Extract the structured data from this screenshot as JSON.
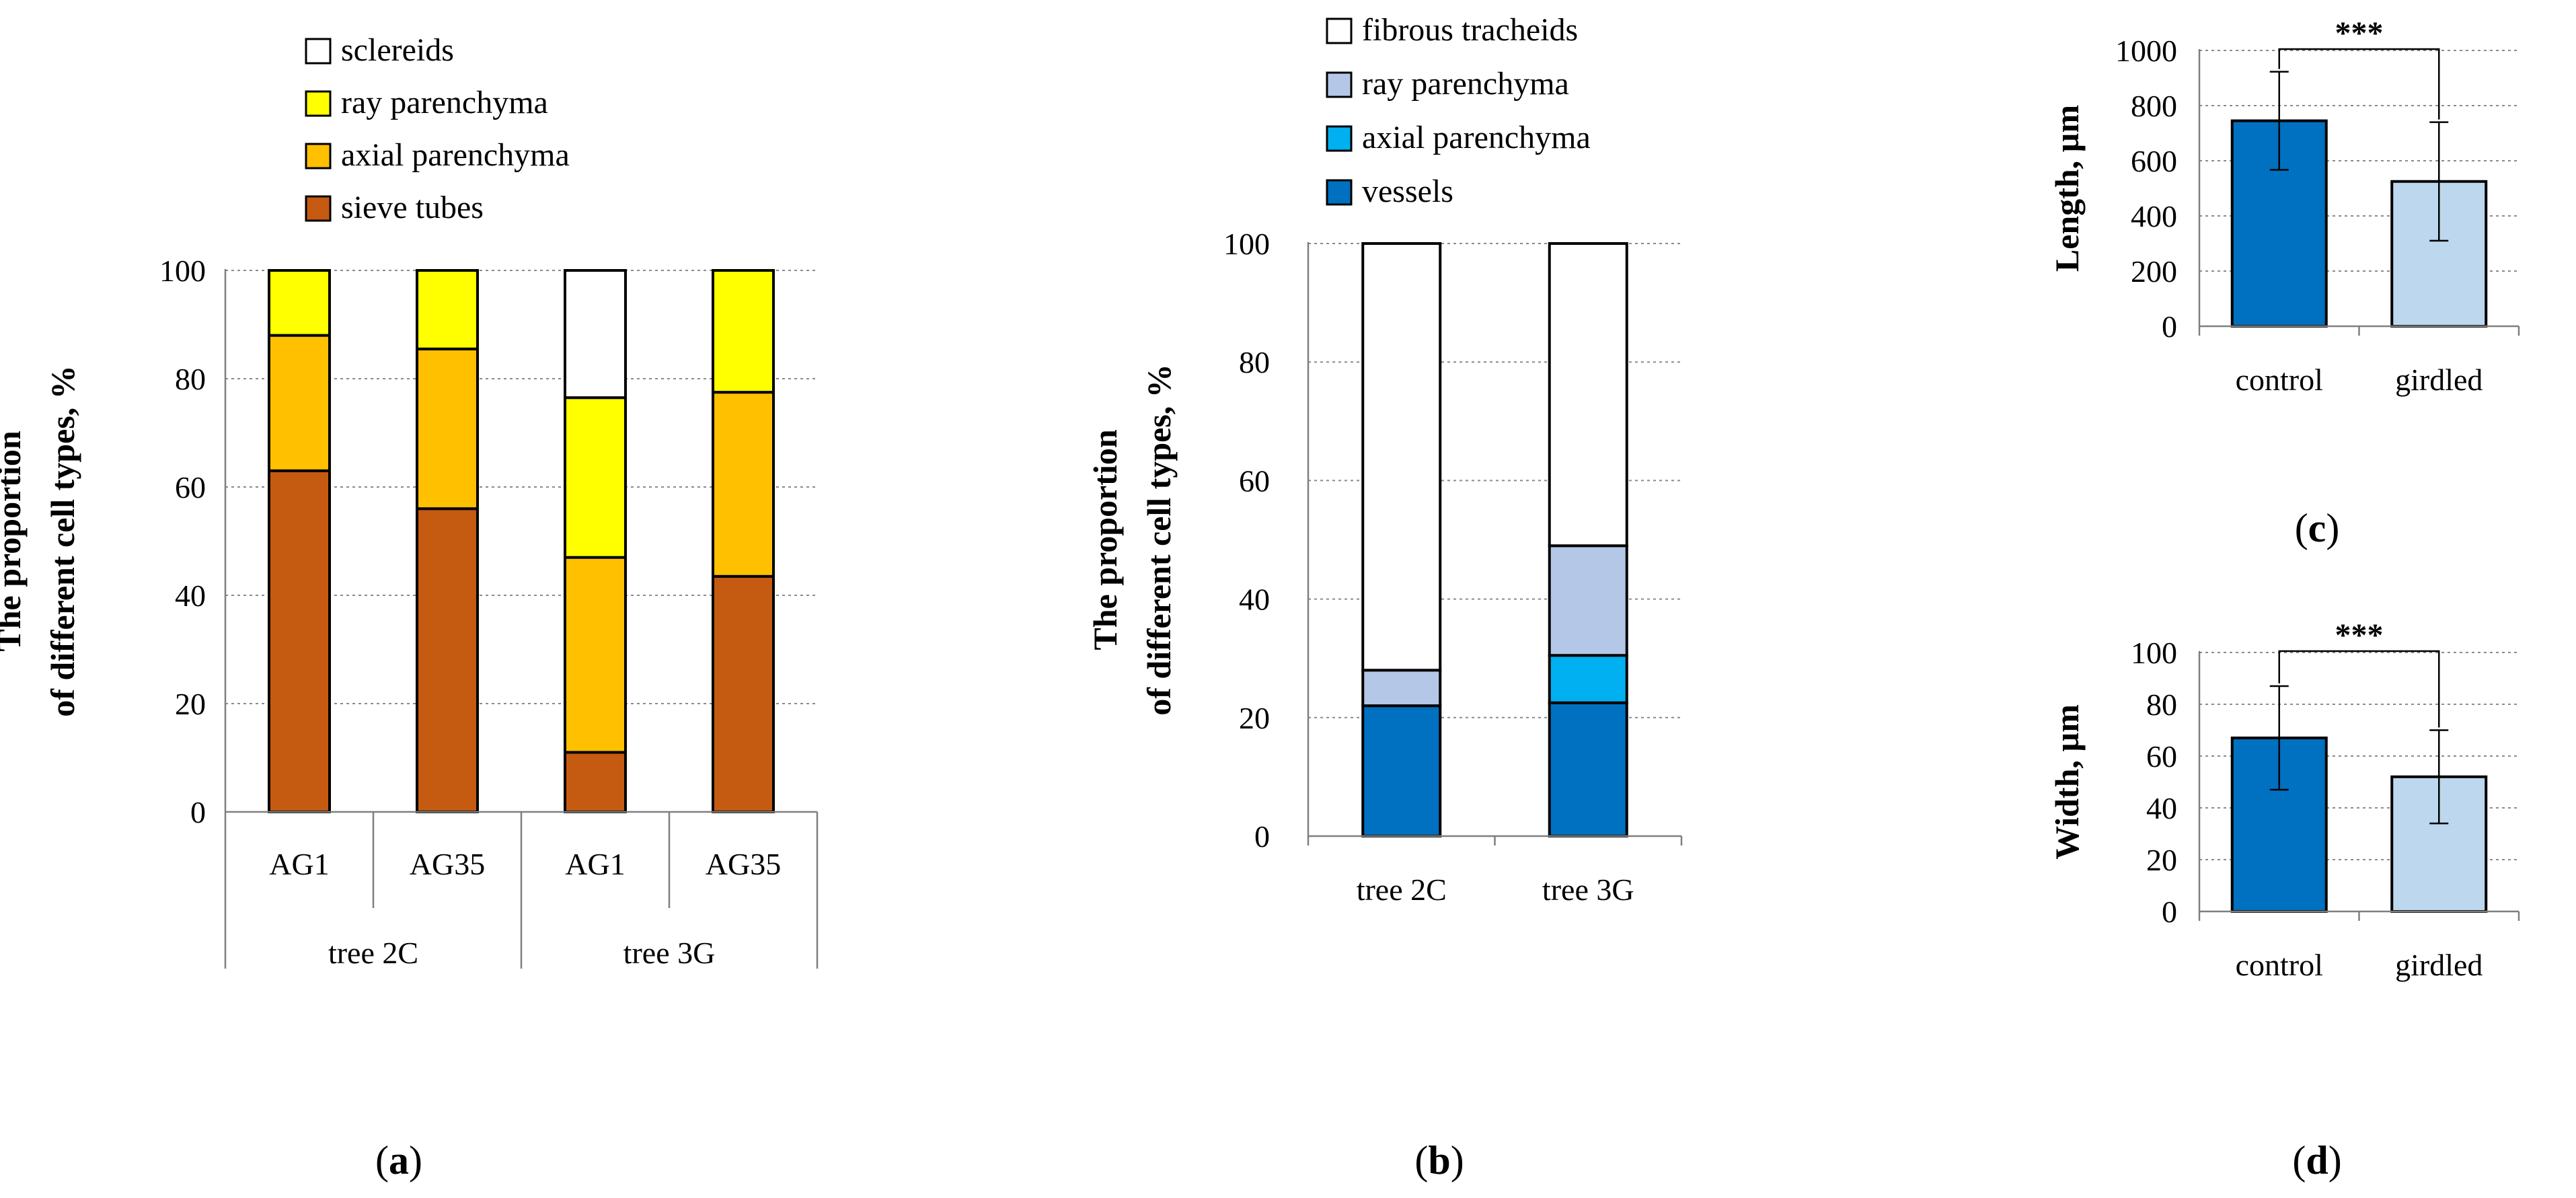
{
  "chart_data": [
    {
      "panel": "a",
      "type": "bar",
      "stacked": true,
      "ylabel_lines": [
        "The proportion",
        "of different cell types, %"
      ],
      "ylim": [
        0,
        100
      ],
      "yticks": [
        0,
        20,
        40,
        60,
        80,
        100
      ],
      "grid": true,
      "categories": [
        "AG1",
        "AG35",
        "AG1",
        "AG35"
      ],
      "groups": [
        {
          "label": "tree 2C",
          "span": [
            0,
            1
          ]
        },
        {
          "label": "tree 3G",
          "span": [
            2,
            3
          ]
        }
      ],
      "legend_position": "top",
      "series": [
        {
          "name": "sieve tubes",
          "color": "#c55a11",
          "values": [
            63,
            56,
            11,
            43.5
          ]
        },
        {
          "name": "axial parenchyma",
          "color": "#ffc000",
          "values": [
            25,
            29.5,
            36,
            34
          ]
        },
        {
          "name": "ray parenchyma",
          "color": "#ffff00",
          "values": [
            12,
            14.5,
            29.5,
            22.5
          ]
        },
        {
          "name": "sclereids",
          "color": "#ffffff",
          "values": [
            0,
            0,
            23.5,
            0
          ]
        }
      ],
      "label": "a"
    },
    {
      "panel": "b",
      "type": "bar",
      "stacked": true,
      "ylabel_lines": [
        "The proportion",
        "of different cell types, %"
      ],
      "ylim": [
        0,
        100
      ],
      "yticks": [
        0,
        20,
        40,
        60,
        80,
        100
      ],
      "grid": true,
      "categories": [
        "tree 2C",
        "tree 3G"
      ],
      "legend_position": "top",
      "series": [
        {
          "name": "vessels",
          "color": "#0070c0",
          "values": [
            22,
            22.5
          ]
        },
        {
          "name": "axial parenchyma",
          "color": "#00b0f0",
          "values": [
            0,
            8
          ]
        },
        {
          "name": "ray parenchyma",
          "color": "#b4c7e7",
          "values": [
            6,
            18.5
          ]
        },
        {
          "name": "fibrous tracheids",
          "color": "#ffffff",
          "values": [
            72,
            51
          ]
        }
      ],
      "label": "b"
    },
    {
      "panel": "c",
      "type": "bar",
      "ylabel": "Length, µm",
      "ylim": [
        0,
        1000
      ],
      "yticks": [
        0,
        200,
        400,
        600,
        800,
        1000
      ],
      "grid": true,
      "categories": [
        "control",
        "girdled"
      ],
      "values": [
        745,
        525
      ],
      "errors": [
        178,
        215
      ],
      "colors": [
        "#0070c0",
        "#bdd7ee"
      ],
      "significance": "***",
      "label": "c"
    },
    {
      "panel": "d",
      "type": "bar",
      "ylabel": "Width, µm",
      "ylim": [
        0,
        100
      ],
      "yticks": [
        0,
        20,
        40,
        60,
        80,
        100
      ],
      "grid": true,
      "categories": [
        "control",
        "girdled"
      ],
      "values": [
        67,
        52
      ],
      "errors": [
        20,
        18
      ],
      "colors": [
        "#0070c0",
        "#bdd7ee"
      ],
      "significance": "***",
      "label": "d"
    }
  ]
}
